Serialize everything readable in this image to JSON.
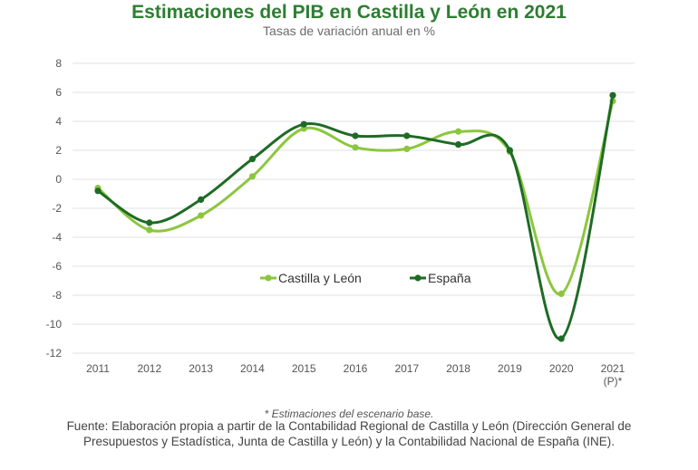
{
  "header": {
    "title": "Estimaciones del PIB en Castilla y León en 2021",
    "subtitle": "Tasas de variación anual en %"
  },
  "footer": {
    "note": "* Estimaciones del escenario base.",
    "source": "Fuente: Elaboración propia a partir de la Contabilidad Regional de Castilla y León (Dirección General de Presupuestos y Estadística, Junta de Castilla y León) y la Contabilidad Nacional de España (INE)."
  },
  "chart_data": {
    "type": "line",
    "title": "Estimaciones del PIB en Castilla y León en 2021",
    "subtitle": "Tasas de variación anual en %",
    "xlabel": "",
    "ylabel": "",
    "categories": [
      "2011",
      "2012",
      "2013",
      "2014",
      "2015",
      "2016",
      "2017",
      "2018",
      "2019",
      "2020",
      "2021"
    ],
    "last_category_sublabel": "(P)*",
    "ylim": [
      -12,
      8
    ],
    "yticks": [
      8,
      6,
      4,
      2,
      0,
      -2,
      -4,
      -6,
      -8,
      -10,
      -12
    ],
    "grid": true,
    "legend_position": "center",
    "series": [
      {
        "name": "Castilla y León",
        "color": "#8cc63f",
        "values": [
          -0.6,
          -3.5,
          -2.5,
          0.2,
          3.5,
          2.2,
          2.1,
          3.3,
          1.9,
          -7.9,
          5.4
        ]
      },
      {
        "name": "España",
        "color": "#1e6b25",
        "values": [
          -0.8,
          -3.0,
          -1.4,
          1.4,
          3.8,
          3.0,
          3.0,
          2.4,
          2.0,
          -11.0,
          5.8
        ]
      }
    ]
  }
}
